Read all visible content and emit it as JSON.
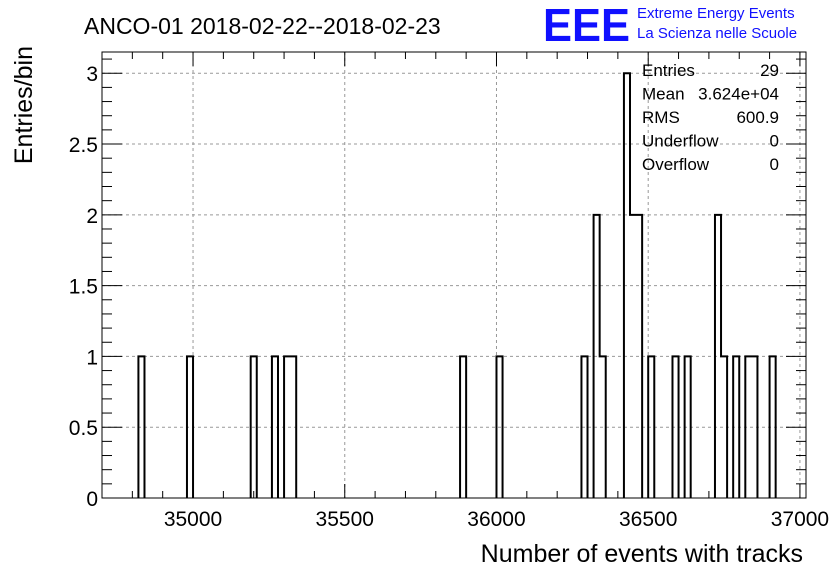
{
  "chart_data": {
    "type": "bar",
    "title": "ANCO-01 2018-02-22--2018-02-23",
    "xlabel": "Number of events with tracks",
    "ylabel": "Entries/bin",
    "xlim": [
      34700,
      37020
    ],
    "ylim": [
      0,
      3.15
    ],
    "bin_width": 20,
    "x_ticks": [
      "35000",
      "35500",
      "36000",
      "36500",
      "37000"
    ],
    "y_ticks": [
      "0",
      "0.5",
      "1",
      "1.5",
      "2",
      "2.5",
      "3"
    ],
    "grid": true,
    "bins": [
      {
        "x": 34820,
        "y": 1
      },
      {
        "x": 34980,
        "y": 1
      },
      {
        "x": 35190,
        "y": 1
      },
      {
        "x": 35260,
        "y": 1
      },
      {
        "x": 35300,
        "y": 1
      },
      {
        "x": 35320,
        "y": 1
      },
      {
        "x": 35880,
        "y": 1
      },
      {
        "x": 36000,
        "y": 1
      },
      {
        "x": 36280,
        "y": 1
      },
      {
        "x": 36320,
        "y": 2
      },
      {
        "x": 36340,
        "y": 1
      },
      {
        "x": 36420,
        "y": 3
      },
      {
        "x": 36440,
        "y": 2
      },
      {
        "x": 36460,
        "y": 2
      },
      {
        "x": 36500,
        "y": 1
      },
      {
        "x": 36580,
        "y": 1
      },
      {
        "x": 36620,
        "y": 1
      },
      {
        "x": 36720,
        "y": 2
      },
      {
        "x": 36740,
        "y": 1
      },
      {
        "x": 36780,
        "y": 1
      },
      {
        "x": 36820,
        "y": 1
      },
      {
        "x": 36840,
        "y": 1
      },
      {
        "x": 36900,
        "y": 1
      }
    ],
    "stats": [
      {
        "label": "Entries",
        "value": "29"
      },
      {
        "label": "Mean",
        "value": "3.624e+04"
      },
      {
        "label": "RMS",
        "value": "600.9"
      },
      {
        "label": "Underflow",
        "value": "0"
      },
      {
        "label": "Overflow",
        "value": "0"
      }
    ]
  },
  "logo": {
    "mark": "EEE",
    "line1": "Extreme Energy Events",
    "line2": "La Scienza nelle Scuole",
    "color": "#1010ff"
  }
}
